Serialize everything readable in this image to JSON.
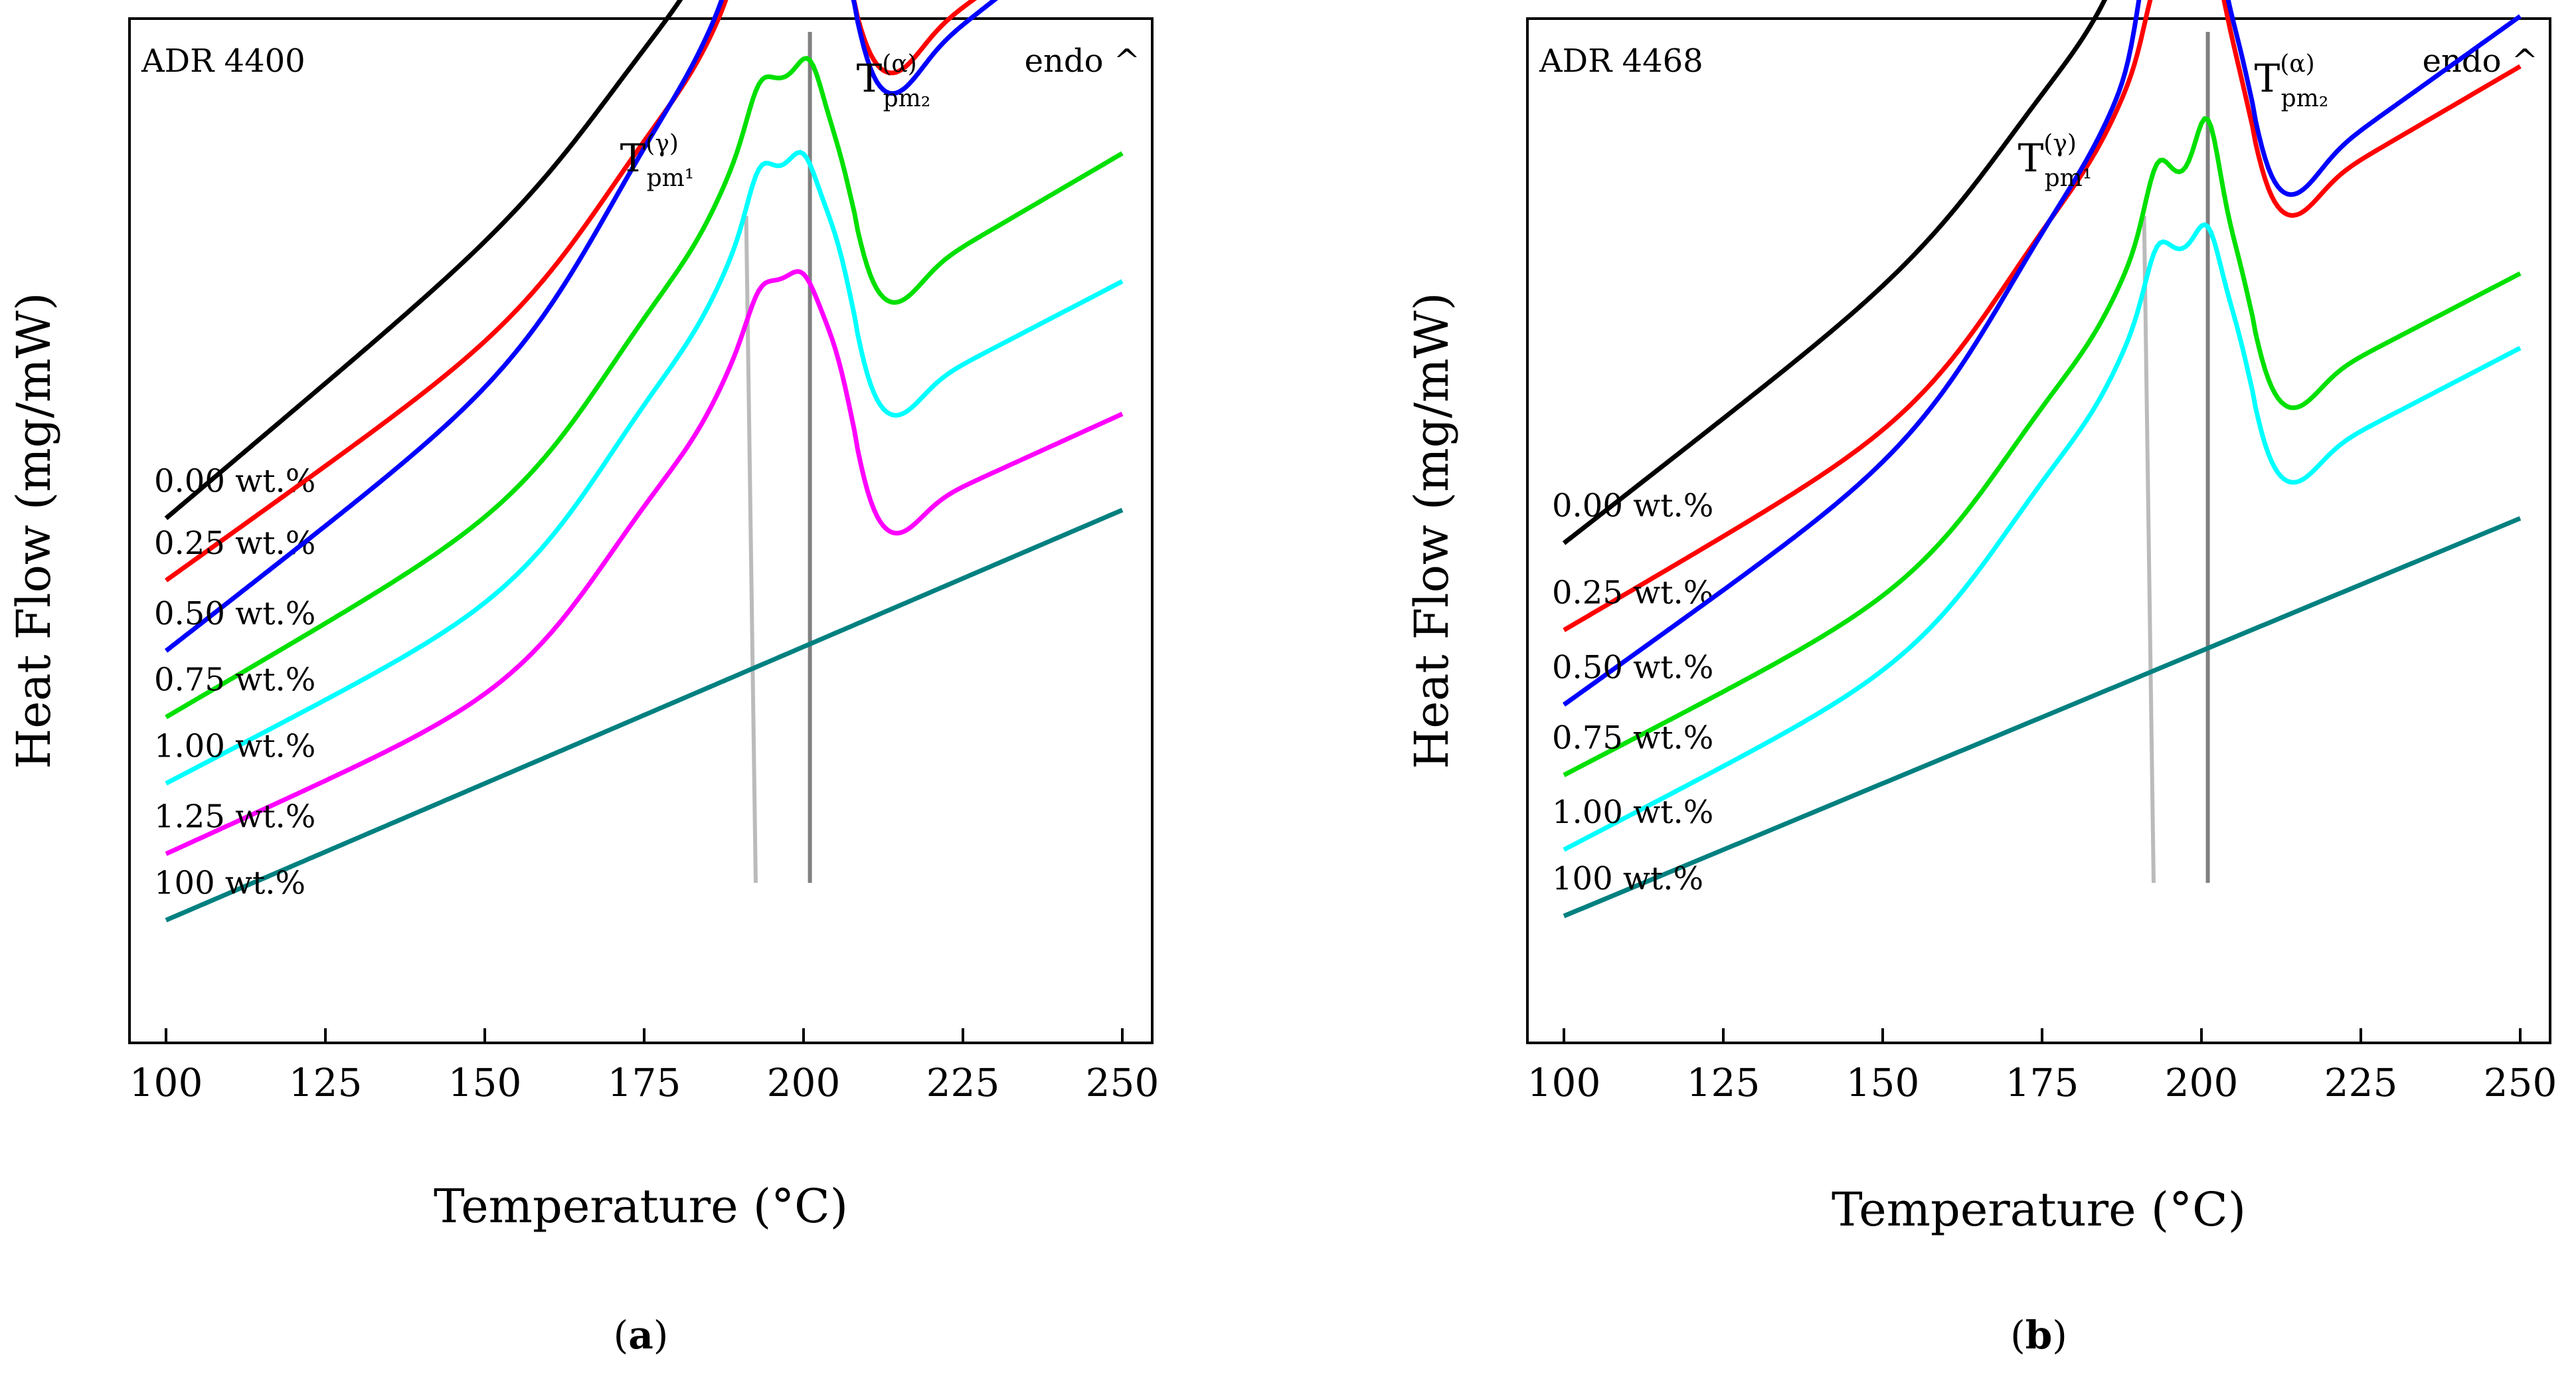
{
  "chart_data": [
    {
      "type": "line",
      "panel": "a",
      "title": "ADR 4400",
      "annotation": "endo ^",
      "caption_letter": "a",
      "xlabel": "Temperature (°C)",
      "ylabel": "Heat Flow (mg/mW)",
      "xlim": [
        100,
        250
      ],
      "xticks": [
        "100",
        "125",
        "150",
        "175",
        "200",
        "225",
        "250"
      ],
      "y_ticks_shown": false,
      "grid": false,
      "legend": "inline-left",
      "peak_labels": [
        {
          "symbol": "T",
          "sup": "(γ)",
          "sub": "pm¹",
          "x": 191
        },
        {
          "symbol": "T",
          "sup": "(α)",
          "sub": "pm₂",
          "x": 201
        }
      ],
      "series": [
        {
          "name": "0.00 wt.%",
          "color": "#000000",
          "baseline": 1.65,
          "amp": 5.3,
          "wide_amp": 0.3,
          "slope": 0.0065,
          "peaks": [
            {
              "x": 191,
              "w": 2.0,
              "h": 1.0
            },
            {
              "x": 201,
              "w": 2.5,
              "h": 3.0
            }
          ],
          "end_drop": 1.55
        },
        {
          "name": "0.25 wt.%",
          "color": "#ff0000",
          "baseline": 0.9,
          "amp": 5.3,
          "wide_amp": 0.45,
          "slope": 0.0055,
          "peaks": [
            {
              "x": 192,
              "w": 2.5,
              "h": 0.5
            },
            {
              "x": 202,
              "w": 3.0,
              "h": 1.4
            }
          ],
          "end_drop": 1.8
        },
        {
          "name": "0.50 wt.%",
          "color": "#0000ff",
          "baseline": 0.05,
          "amp": 5.3,
          "wide_amp": 0.6,
          "slope": 0.006,
          "peaks": [
            {
              "x": 192,
              "w": 2.5,
              "h": 1.0
            },
            {
              "x": 201,
              "w": 2.5,
              "h": 1.0
            }
          ],
          "end_drop": 2.0
        },
        {
          "name": "0.75 wt.%",
          "color": "#00e000",
          "baseline": -0.75,
          "amp": 5.3,
          "wide_amp": 0.55,
          "slope": 0.0045,
          "peaks": [
            {
              "x": 193,
              "w": 2.5,
              "h": 0.3
            },
            {
              "x": 201,
              "w": 2.5,
              "h": 0.4
            }
          ],
          "end_drop": 1.95
        },
        {
          "name": "1.00 wt.%",
          "color": "#00ffff",
          "baseline": -1.55,
          "amp": 5.3,
          "wide_amp": 0.6,
          "slope": 0.004,
          "peaks": [
            {
              "x": 193,
              "w": 2.5,
              "h": 0.35
            },
            {
              "x": 200,
              "w": 2.5,
              "h": 0.3
            }
          ],
          "end_drop": 2.05
        },
        {
          "name": "1.25 wt.%",
          "color": "#ff00ff",
          "baseline": -2.4,
          "amp": 5.3,
          "wide_amp": 0.6,
          "slope": 0.0035,
          "peaks": [
            {
              "x": 193,
              "w": 2.5,
              "h": 0.2
            },
            {
              "x": 200,
              "w": 2.5,
              "h": 0.2
            }
          ],
          "end_drop": 1.75
        },
        {
          "name": "100 wt.%",
          "color": "#008080",
          "baseline": -3.2,
          "amp": 0,
          "wide_amp": 0,
          "slope": 0.0033,
          "peaks": [],
          "end_drop": 0
        }
      ]
    },
    {
      "type": "line",
      "panel": "b",
      "title": "ADR 4468",
      "annotation": "endo ^",
      "caption_letter": "b",
      "xlabel": "Temperature (°C)",
      "ylabel": "Heat Flow (mg/mW)",
      "xlim": [
        100,
        250
      ],
      "xticks": [
        "100",
        "125",
        "150",
        "175",
        "200",
        "225",
        "250"
      ],
      "y_ticks_shown": false,
      "grid": false,
      "legend": "inline-left",
      "peak_labels": [
        {
          "symbol": "T",
          "sup": "(γ)",
          "sub": "pm¹",
          "x": 191
        },
        {
          "symbol": "T",
          "sup": "(α)",
          "sub": "pm₂",
          "x": 201
        }
      ],
      "series": [
        {
          "name": "0.00 wt.%",
          "color": "#000000",
          "baseline": 1.35,
          "amp": 5.0,
          "wide_amp": 0.35,
          "slope": 0.006,
          "peaks": [
            {
              "x": 191,
              "w": 2.0,
              "h": 1.3
            },
            {
              "x": 201,
              "w": 2.5,
              "h": 3.2
            }
          ],
          "end_drop": 1.55
        },
        {
          "name": "0.25 wt.%",
          "color": "#ff0000",
          "baseline": 0.3,
          "amp": 5.0,
          "wide_amp": 0.55,
          "slope": 0.0045,
          "peaks": [
            {
              "x": 193,
              "w": 2.5,
              "h": 0.5
            },
            {
              "x": 201,
              "w": 3.0,
              "h": 0.8
            }
          ],
          "end_drop": 1.85
        },
        {
          "name": "0.50 wt.%",
          "color": "#0000ff",
          "baseline": -0.6,
          "amp": 5.0,
          "wide_amp": 0.6,
          "slope": 0.0055,
          "peaks": [
            {
              "x": 192,
              "w": 2.5,
              "h": 0.9
            },
            {
              "x": 201,
              "w": 2.5,
              "h": 0.9
            }
          ],
          "end_drop": 1.9
        },
        {
          "name": "0.75 wt.%",
          "color": "#00e000",
          "baseline": -1.45,
          "amp": 5.0,
          "wide_amp": 0.55,
          "slope": 0.004,
          "peaks": [
            {
              "x": 193,
              "w": 2.5,
              "h": 0.5
            },
            {
              "x": 201,
              "w": 2.5,
              "h": 0.9
            }
          ],
          "end_drop": 1.85
        },
        {
          "name": "1.00 wt.%",
          "color": "#00ffff",
          "baseline": -2.35,
          "amp": 5.0,
          "wide_amp": 0.55,
          "slope": 0.004,
          "peaks": [
            {
              "x": 193,
              "w": 2.5,
              "h": 0.4
            },
            {
              "x": 201,
              "w": 2.5,
              "h": 0.5
            }
          ],
          "end_drop": 1.85
        },
        {
          "name": "100 wt.%",
          "color": "#008080",
          "baseline": -3.15,
          "amp": 0,
          "wide_amp": 0,
          "slope": 0.0032,
          "peaks": [],
          "end_drop": 0
        }
      ]
    }
  ]
}
